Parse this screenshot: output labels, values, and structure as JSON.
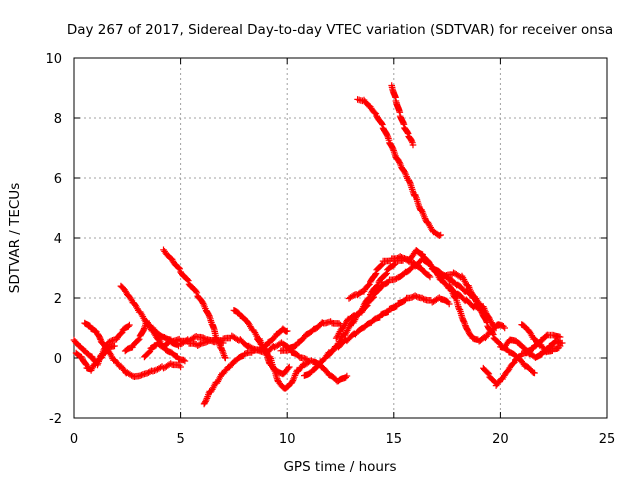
{
  "chart_data": {
    "type": "scatter",
    "title": "Day 267 of 2017, Sidereal Day-to-day VTEC variation (SDTVAR) for receiver onsa",
    "xlabel": "GPS time / hours",
    "ylabel": "SDTVAR / TECUs",
    "xlim": [
      0,
      25
    ],
    "ylim": [
      -2,
      10
    ],
    "xticks": [
      0,
      5,
      10,
      15,
      20,
      25
    ],
    "yticks": [
      -2,
      0,
      2,
      4,
      6,
      8,
      10
    ],
    "xtick_labels": [
      "0",
      "5",
      "10",
      "15",
      "20",
      "25"
    ],
    "ytick_labels": [
      "-2",
      "0",
      "2",
      "4",
      "6",
      "8",
      "10"
    ],
    "grid": true,
    "marker": "+",
    "color": "#ff0000",
    "series": [
      {
        "name": "s1",
        "points": [
          [
            0.0,
            0.6
          ],
          [
            0.3,
            0.4
          ],
          [
            0.6,
            0.2
          ],
          [
            0.9,
            0.0
          ],
          [
            1.1,
            -0.2
          ],
          [
            1.3,
            0.1
          ],
          [
            1.6,
            0.5
          ],
          [
            2.0,
            0.6
          ],
          [
            2.3,
            0.9
          ],
          [
            2.6,
            1.1
          ]
        ]
      },
      {
        "name": "s2",
        "points": [
          [
            0.1,
            0.2
          ],
          [
            0.4,
            0.0
          ],
          [
            0.6,
            -0.3
          ],
          [
            0.8,
            -0.4
          ],
          [
            1.0,
            -0.2
          ],
          [
            1.3,
            0.0
          ],
          [
            1.6,
            0.3
          ],
          [
            1.9,
            0.4
          ]
        ]
      },
      {
        "name": "s3",
        "points": [
          [
            0.5,
            1.2
          ],
          [
            0.8,
            1.0
          ],
          [
            1.1,
            0.8
          ],
          [
            1.3,
            0.5
          ],
          [
            1.6,
            0.2
          ],
          [
            1.9,
            -0.1
          ],
          [
            2.2,
            -0.3
          ],
          [
            2.5,
            -0.5
          ],
          [
            2.9,
            -0.6
          ],
          [
            3.3,
            -0.5
          ],
          [
            3.7,
            -0.4
          ],
          [
            4.2,
            -0.3
          ],
          [
            4.6,
            -0.2
          ],
          [
            5.0,
            -0.3
          ]
        ]
      },
      {
        "name": "s4",
        "points": [
          [
            2.2,
            2.4
          ],
          [
            2.5,
            2.1
          ],
          [
            2.8,
            1.8
          ],
          [
            3.1,
            1.5
          ],
          [
            3.4,
            1.2
          ],
          [
            3.7,
            0.9
          ],
          [
            4.0,
            0.6
          ],
          [
            4.3,
            0.3
          ],
          [
            4.6,
            0.2
          ],
          [
            4.9,
            0.0
          ],
          [
            5.2,
            -0.1
          ]
        ]
      },
      {
        "name": "s5",
        "points": [
          [
            2.4,
            0.2
          ],
          [
            2.8,
            0.4
          ],
          [
            3.1,
            0.7
          ],
          [
            3.4,
            1.2
          ],
          [
            3.7,
            1.0
          ],
          [
            4.0,
            0.8
          ],
          [
            4.3,
            0.7
          ],
          [
            4.6,
            0.6
          ],
          [
            5.0,
            0.6
          ],
          [
            5.4,
            0.5
          ],
          [
            5.8,
            0.4
          ],
          [
            6.2,
            0.5
          ],
          [
            6.6,
            0.6
          ],
          [
            7.0,
            0.5
          ]
        ]
      },
      {
        "name": "s6",
        "points": [
          [
            3.3,
            0.0
          ],
          [
            3.6,
            0.3
          ],
          [
            3.9,
            0.5
          ],
          [
            4.2,
            0.4
          ],
          [
            4.5,
            0.6
          ],
          [
            4.9,
            0.4
          ]
        ]
      },
      {
        "name": "s7",
        "points": [
          [
            4.2,
            3.6
          ],
          [
            4.6,
            3.3
          ],
          [
            5.0,
            2.9
          ],
          [
            5.4,
            2.5
          ],
          [
            5.8,
            2.1
          ],
          [
            6.2,
            1.6
          ],
          [
            6.5,
            1.1
          ],
          [
            6.7,
            0.6
          ],
          [
            6.9,
            0.3
          ],
          [
            7.1,
            0.0
          ]
        ]
      },
      {
        "name": "s8",
        "points": [
          [
            6.1,
            -1.5
          ],
          [
            6.4,
            -1.1
          ],
          [
            6.7,
            -0.8
          ],
          [
            7.0,
            -0.5
          ],
          [
            7.3,
            -0.3
          ],
          [
            7.6,
            -0.1
          ],
          [
            8.0,
            0.1
          ],
          [
            8.4,
            0.2
          ],
          [
            8.8,
            0.3
          ],
          [
            9.1,
            0.5
          ],
          [
            9.5,
            0.8
          ],
          [
            9.8,
            1.0
          ],
          [
            10.0,
            0.9
          ]
        ]
      },
      {
        "name": "s9",
        "points": [
          [
            5.0,
            0.5
          ],
          [
            5.4,
            0.6
          ],
          [
            5.8,
            0.7
          ],
          [
            6.2,
            0.6
          ],
          [
            6.6,
            0.5
          ],
          [
            7.0,
            0.6
          ],
          [
            7.4,
            0.7
          ],
          [
            7.8,
            0.6
          ],
          [
            8.2,
            0.4
          ],
          [
            8.6,
            0.3
          ],
          [
            9.0,
            0.2
          ],
          [
            9.4,
            0.4
          ],
          [
            9.8,
            0.5
          ],
          [
            10.2,
            0.2
          ],
          [
            10.6,
            0.0
          ],
          [
            11.0,
            -0.1
          ]
        ]
      },
      {
        "name": "s10",
        "points": [
          [
            7.5,
            1.6
          ],
          [
            7.8,
            1.4
          ],
          [
            8.1,
            1.2
          ],
          [
            8.4,
            0.9
          ],
          [
            8.7,
            0.6
          ],
          [
            9.0,
            0.2
          ],
          [
            9.2,
            -0.2
          ],
          [
            9.5,
            -0.4
          ],
          [
            9.8,
            -0.5
          ],
          [
            10.1,
            -0.3
          ]
        ]
      },
      {
        "name": "s11",
        "points": [
          [
            8.6,
            0.6
          ],
          [
            8.9,
            0.3
          ],
          [
            9.2,
            0.0
          ],
          [
            9.4,
            -0.4
          ],
          [
            9.6,
            -0.8
          ],
          [
            9.9,
            -1.0
          ],
          [
            10.2,
            -0.8
          ],
          [
            10.5,
            -0.4
          ],
          [
            10.8,
            -0.2
          ],
          [
            11.2,
            -0.1
          ],
          [
            11.6,
            -0.3
          ],
          [
            12.0,
            -0.6
          ],
          [
            12.4,
            -0.8
          ],
          [
            12.8,
            -0.6
          ]
        ]
      },
      {
        "name": "s12",
        "points": [
          [
            9.7,
            0.2
          ],
          [
            10.1,
            0.3
          ],
          [
            10.5,
            0.5
          ],
          [
            10.9,
            0.8
          ],
          [
            11.3,
            1.0
          ],
          [
            11.7,
            1.2
          ],
          [
            12.1,
            1.2
          ],
          [
            12.5,
            1.1
          ]
        ]
      },
      {
        "name": "s13",
        "points": [
          [
            10.8,
            -0.6
          ],
          [
            11.2,
            -0.4
          ],
          [
            11.6,
            -0.1
          ],
          [
            12.0,
            0.2
          ],
          [
            12.4,
            0.4
          ],
          [
            12.8,
            0.6
          ],
          [
            13.2,
            0.8
          ],
          [
            13.6,
            1.0
          ],
          [
            14.0,
            1.2
          ],
          [
            14.4,
            1.4
          ],
          [
            14.8,
            1.6
          ],
          [
            15.2,
            1.8
          ],
          [
            15.6,
            2.0
          ],
          [
            16.0,
            2.1
          ],
          [
            16.4,
            2.0
          ],
          [
            16.8,
            1.9
          ],
          [
            17.2,
            2.0
          ],
          [
            17.6,
            1.8
          ]
        ]
      },
      {
        "name": "s14",
        "points": [
          [
            11.9,
            0.1
          ],
          [
            12.3,
            0.4
          ],
          [
            12.7,
            0.8
          ],
          [
            13.1,
            1.2
          ],
          [
            13.5,
            1.6
          ],
          [
            13.9,
            2.1
          ],
          [
            14.3,
            2.5
          ],
          [
            14.7,
            2.9
          ],
          [
            15.1,
            3.2
          ],
          [
            15.5,
            3.3
          ],
          [
            15.9,
            3.2
          ],
          [
            16.3,
            3.0
          ],
          [
            16.7,
            2.7
          ]
        ]
      },
      {
        "name": "s15",
        "points": [
          [
            12.3,
            0.7
          ],
          [
            12.6,
            1.0
          ],
          [
            12.9,
            1.3
          ],
          [
            13.2,
            1.4
          ],
          [
            13.5,
            1.5
          ],
          [
            13.8,
            1.8
          ],
          [
            14.1,
            2.1
          ],
          [
            14.4,
            2.4
          ],
          [
            14.8,
            2.6
          ],
          [
            15.2,
            2.7
          ],
          [
            15.6,
            2.9
          ],
          [
            16.0,
            3.1
          ],
          [
            16.4,
            3.3
          ],
          [
            16.8,
            3.0
          ],
          [
            17.2,
            2.6
          ],
          [
            17.6,
            2.3
          ],
          [
            18.0,
            2.1
          ],
          [
            18.4,
            1.9
          ],
          [
            18.8,
            1.7
          ],
          [
            19.2,
            1.6
          ]
        ]
      },
      {
        "name": "s16",
        "points": [
          [
            12.9,
            2.0
          ],
          [
            13.3,
            2.1
          ],
          [
            13.6,
            2.2
          ],
          [
            13.9,
            2.5
          ],
          [
            14.2,
            2.9
          ],
          [
            14.5,
            3.2
          ],
          [
            14.9,
            3.3
          ],
          [
            15.3,
            3.4
          ],
          [
            15.7,
            3.3
          ],
          [
            16.1,
            3.6
          ],
          [
            16.4,
            3.4
          ],
          [
            16.8,
            3.0
          ],
          [
            17.2,
            2.8
          ],
          [
            17.6,
            2.6
          ],
          [
            18.0,
            2.4
          ],
          [
            18.4,
            2.2
          ],
          [
            18.8,
            2.0
          ],
          [
            19.2,
            1.7
          ],
          [
            19.5,
            1.3
          ],
          [
            19.8,
            1.0
          ]
        ]
      },
      {
        "name": "s17",
        "points": [
          [
            17.0,
            2.9
          ],
          [
            17.4,
            2.7
          ],
          [
            17.8,
            2.8
          ],
          [
            18.2,
            2.7
          ],
          [
            18.5,
            2.4
          ],
          [
            18.8,
            2.0
          ],
          [
            19.1,
            1.6
          ],
          [
            19.4,
            1.1
          ],
          [
            19.7,
            0.7
          ],
          [
            20.0,
            0.4
          ],
          [
            20.4,
            0.2
          ],
          [
            20.8,
            0.0
          ],
          [
            21.2,
            -0.3
          ],
          [
            21.6,
            -0.5
          ]
        ]
      },
      {
        "name": "s18",
        "points": [
          [
            17.6,
            2.4
          ],
          [
            17.9,
            2.0
          ],
          [
            18.1,
            1.6
          ],
          [
            18.3,
            1.2
          ],
          [
            18.5,
            0.9
          ],
          [
            18.7,
            0.7
          ],
          [
            19.0,
            0.6
          ],
          [
            19.3,
            0.7
          ],
          [
            19.6,
            0.9
          ],
          [
            19.9,
            1.1
          ],
          [
            20.2,
            1.0
          ]
        ]
      },
      {
        "name": "s19",
        "points": [
          [
            13.3,
            8.6
          ],
          [
            13.6,
            8.6
          ],
          [
            13.9,
            8.4
          ],
          [
            14.2,
            8.1
          ],
          [
            14.5,
            7.7
          ],
          [
            14.8,
            7.2
          ],
          [
            15.1,
            6.7
          ],
          [
            15.4,
            6.3
          ],
          [
            15.7,
            5.9
          ],
          [
            16.0,
            5.4
          ],
          [
            16.3,
            4.9
          ],
          [
            16.6,
            4.5
          ],
          [
            16.9,
            4.2
          ],
          [
            17.2,
            4.1
          ]
        ]
      },
      {
        "name": "s20",
        "points": [
          [
            14.9,
            9.1
          ],
          [
            15.1,
            8.6
          ],
          [
            15.3,
            8.1
          ],
          [
            15.5,
            7.7
          ],
          [
            15.7,
            7.4
          ],
          [
            15.9,
            7.1
          ]
        ]
      },
      {
        "name": "s21",
        "points": [
          [
            19.2,
            -0.3
          ],
          [
            19.5,
            -0.6
          ],
          [
            19.8,
            -0.9
          ],
          [
            20.1,
            -0.7
          ],
          [
            20.4,
            -0.4
          ],
          [
            20.7,
            -0.1
          ],
          [
            21.0,
            0.1
          ],
          [
            21.3,
            0.2
          ],
          [
            21.6,
            0.4
          ],
          [
            21.9,
            0.6
          ],
          [
            22.2,
            0.8
          ],
          [
            22.5,
            0.8
          ],
          [
            22.8,
            0.7
          ]
        ]
      },
      {
        "name": "s22",
        "points": [
          [
            20.2,
            0.4
          ],
          [
            20.5,
            0.6
          ],
          [
            20.8,
            0.5
          ],
          [
            21.1,
            0.3
          ],
          [
            21.4,
            0.1
          ],
          [
            21.7,
            0.0
          ],
          [
            22.0,
            0.2
          ],
          [
            22.3,
            0.4
          ],
          [
            22.6,
            0.6
          ],
          [
            22.9,
            0.5
          ]
        ]
      },
      {
        "name": "s23",
        "points": [
          [
            21.0,
            1.1
          ],
          [
            21.3,
            0.9
          ],
          [
            21.6,
            0.6
          ],
          [
            21.9,
            0.4
          ],
          [
            22.2,
            0.2
          ],
          [
            22.5,
            0.3
          ],
          [
            22.8,
            0.4
          ]
        ]
      }
    ]
  }
}
